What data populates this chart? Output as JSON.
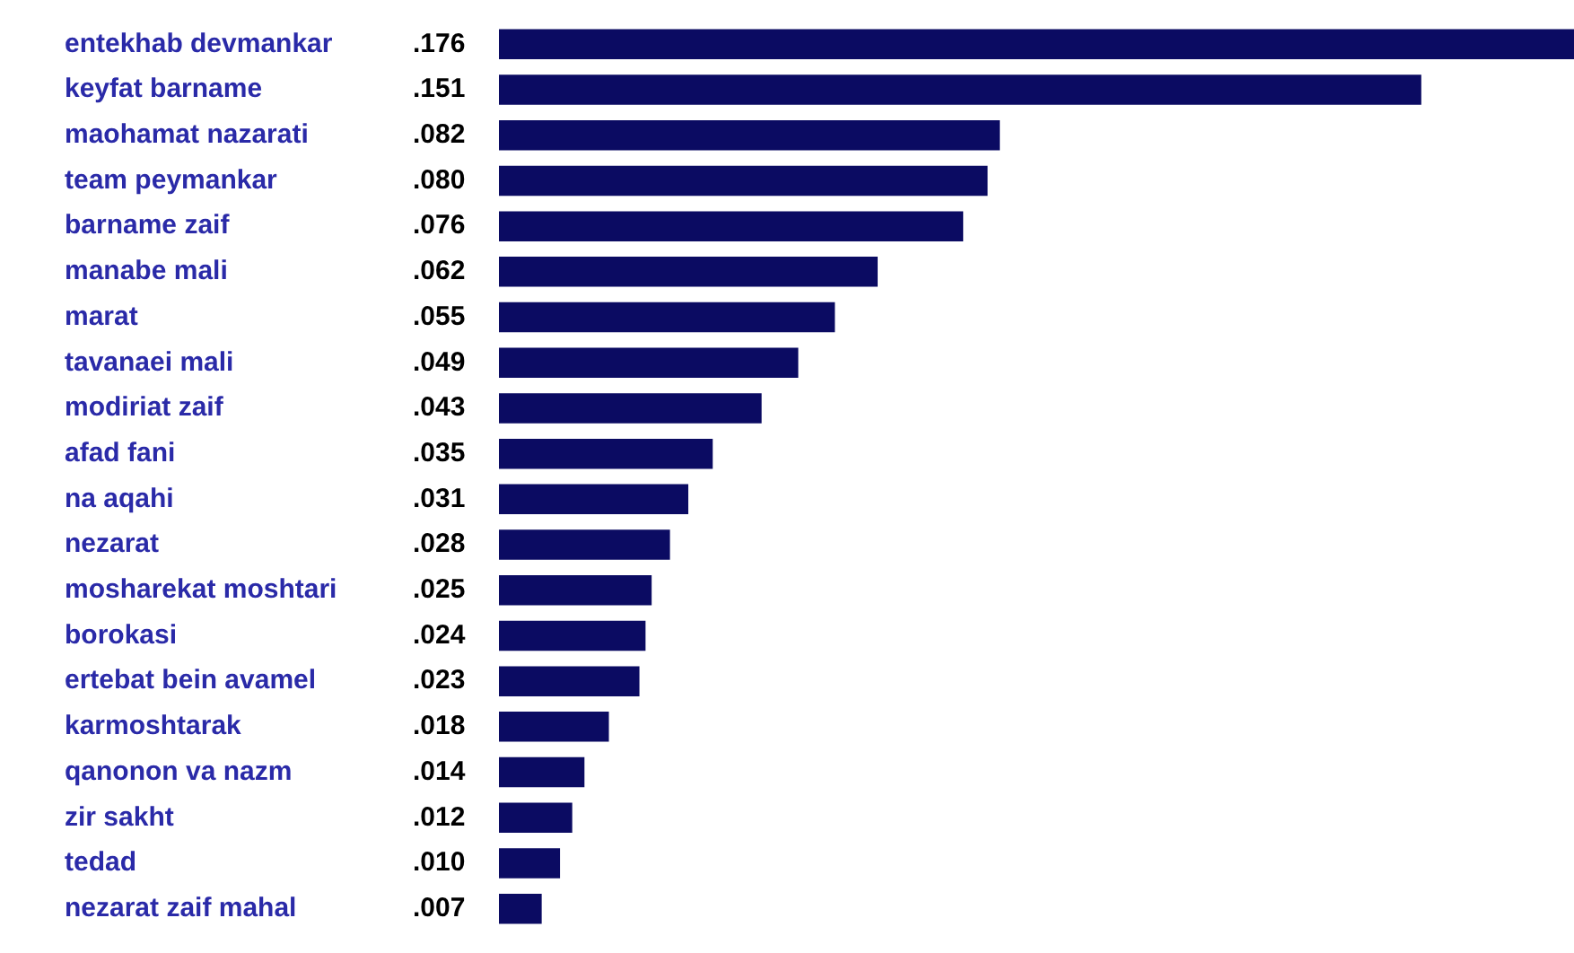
{
  "chart_data": {
    "type": "bar",
    "orientation": "horizontal",
    "categories": [
      "entekhab devmankar",
      "keyfat barname",
      "maohamat nazarati",
      "team peymankar",
      "barname zaif",
      "manabe mali",
      "marat",
      "tavanaei mali",
      "modiriat zaif",
      "afad fani",
      "na aqahi",
      "nezarat",
      "mosharekat moshtari",
      "borokasi",
      "ertebat bein avamel",
      "karmoshtarak",
      "qanonon va nazm",
      "zir sakht",
      "tedad",
      "nezarat zaif mahal"
    ],
    "values": [
      0.176,
      0.151,
      0.082,
      0.08,
      0.076,
      0.062,
      0.055,
      0.049,
      0.043,
      0.035,
      0.031,
      0.028,
      0.025,
      0.024,
      0.023,
      0.018,
      0.014,
      0.012,
      0.01,
      0.007
    ],
    "value_labels": [
      ".176",
      ".151",
      ".082",
      ".080",
      ".076",
      ".062",
      ".055",
      ".049",
      ".043",
      ".035",
      ".031",
      ".028",
      ".025",
      ".024",
      ".023",
      ".018",
      ".014",
      ".012",
      ".010",
      ".007"
    ],
    "color": "#0b0b62"
  }
}
